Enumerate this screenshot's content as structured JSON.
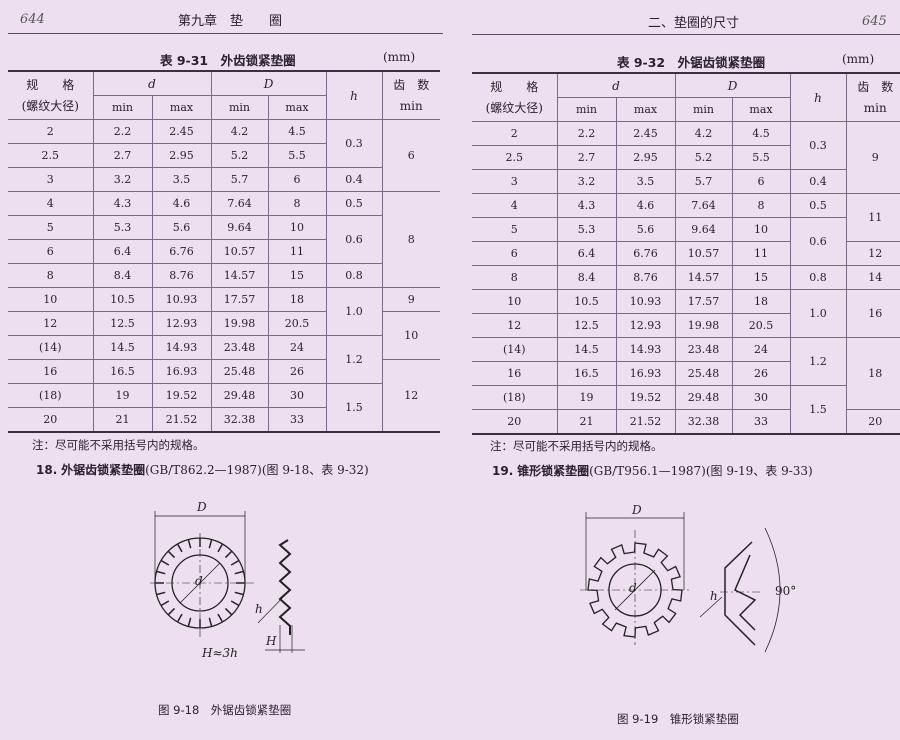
{
  "left": {
    "page_number": "644",
    "running_head": "第九章　垫　　圈",
    "table_title": "表 9-31　外齿锁紧垫圈",
    "unit": "(mm)",
    "headers": {
      "spec": "规　　格",
      "spec_sub": "(螺纹大径)",
      "d": "d",
      "D": "D",
      "h": "h",
      "teeth": "齿　数",
      "min": "min",
      "max": "max"
    },
    "rows": [
      [
        "2",
        "2.2",
        "2.45",
        "4.2",
        "4.5"
      ],
      [
        "2.5",
        "2.7",
        "2.95",
        "5.2",
        "5.5"
      ],
      [
        "3",
        "3.2",
        "3.5",
        "5.7",
        "6"
      ],
      [
        "4",
        "4.3",
        "4.6",
        "7.64",
        "8"
      ],
      [
        "5",
        "5.3",
        "5.6",
        "9.64",
        "10"
      ],
      [
        "6",
        "6.4",
        "6.76",
        "10.57",
        "11"
      ],
      [
        "8",
        "8.4",
        "8.76",
        "14.57",
        "15"
      ],
      [
        "10",
        "10.5",
        "10.93",
        "17.57",
        "18"
      ],
      [
        "12",
        "12.5",
        "12.93",
        "19.98",
        "20.5"
      ],
      [
        "(14)",
        "14.5",
        "14.93",
        "23.48",
        "24"
      ],
      [
        "16",
        "16.5",
        "16.93",
        "25.48",
        "26"
      ],
      [
        "(18)",
        "19",
        "19.52",
        "29.48",
        "30"
      ],
      [
        "20",
        "21",
        "21.52",
        "32.38",
        "33"
      ]
    ],
    "h_groups": [
      {
        "value": "0.3",
        "span": 2
      },
      {
        "value": "0.4",
        "span": 1
      },
      {
        "value": "0.5",
        "span": 1
      },
      {
        "value": "0.6",
        "span": 2
      },
      {
        "value": "0.8",
        "span": 1
      },
      {
        "value": "1.0",
        "span": 2
      },
      {
        "value": "1.2",
        "span": 2
      },
      {
        "value": "1.5",
        "span": 2
      }
    ],
    "teeth_groups": [
      {
        "value": "6",
        "span": 3
      },
      {
        "value": "8",
        "span": 4
      },
      {
        "value": "9",
        "span": 1
      },
      {
        "value": "10",
        "span": 2
      },
      {
        "value": "12",
        "span": 3
      }
    ],
    "note": "注：尽可能不采用括号内的规格。",
    "section_num": "18.",
    "section_title": "外锯齿锁紧垫圈",
    "section_ref": "(GB/T862.2—1987)(图 9-18、表 9-32)",
    "figure": {
      "label_D": "D",
      "label_d": "d",
      "label_h": "h",
      "label_H": "H",
      "formula": "H≈3h",
      "caption": "图 9-18　外锯齿锁紧垫圈"
    }
  },
  "right": {
    "page_number": "645",
    "running_head": "二、垫圈的尺寸",
    "table_title": "表 9-32　外锯齿锁紧垫圈",
    "unit": "(mm)",
    "headers": {
      "spec": "规　　格",
      "spec_sub": "(螺纹大径)",
      "d": "d",
      "D": "D",
      "h": "h",
      "teeth": "齿　数",
      "min": "min",
      "max": "max"
    },
    "rows": [
      [
        "2",
        "2.2",
        "2.45",
        "4.2",
        "4.5"
      ],
      [
        "2.5",
        "2.7",
        "2.95",
        "5.2",
        "5.5"
      ],
      [
        "3",
        "3.2",
        "3.5",
        "5.7",
        "6"
      ],
      [
        "4",
        "4.3",
        "4.6",
        "7.64",
        "8"
      ],
      [
        "5",
        "5.3",
        "5.6",
        "9.64",
        "10"
      ],
      [
        "6",
        "6.4",
        "6.76",
        "10.57",
        "11"
      ],
      [
        "8",
        "8.4",
        "8.76",
        "14.57",
        "15"
      ],
      [
        "10",
        "10.5",
        "10.93",
        "17.57",
        "18"
      ],
      [
        "12",
        "12.5",
        "12.93",
        "19.98",
        "20.5"
      ],
      [
        "(14)",
        "14.5",
        "14.93",
        "23.48",
        "24"
      ],
      [
        "16",
        "16.5",
        "16.93",
        "25.48",
        "26"
      ],
      [
        "(18)",
        "19",
        "19.52",
        "29.48",
        "30"
      ],
      [
        "20",
        "21",
        "21.52",
        "32.38",
        "33"
      ]
    ],
    "h_groups": [
      {
        "value": "0.3",
        "span": 2
      },
      {
        "value": "0.4",
        "span": 1
      },
      {
        "value": "0.5",
        "span": 1
      },
      {
        "value": "0.6",
        "span": 2
      },
      {
        "value": "0.8",
        "span": 1
      },
      {
        "value": "1.0",
        "span": 2
      },
      {
        "value": "1.2",
        "span": 2
      },
      {
        "value": "1.5",
        "span": 2
      }
    ],
    "teeth_groups": [
      {
        "value": "9",
        "span": 3
      },
      {
        "value": "11",
        "span": 2
      },
      {
        "value": "12",
        "span": 1
      },
      {
        "value": "14",
        "span": 1
      },
      {
        "value": "16",
        "span": 2
      },
      {
        "value": "18",
        "span": 3
      },
      {
        "value": "20",
        "span": 1
      }
    ],
    "note": "注：尽可能不采用括号内的规格。",
    "section_num": "19.",
    "section_title": "锥形锁紧垫圈",
    "section_ref": "(GB/T956.1—1987)(图 9-19、表 9-33)",
    "figure": {
      "label_D": "D",
      "label_d": "d",
      "label_h": "h",
      "angle": "90°",
      "caption": "图 9-19　锥形锁紧垫圈"
    }
  }
}
